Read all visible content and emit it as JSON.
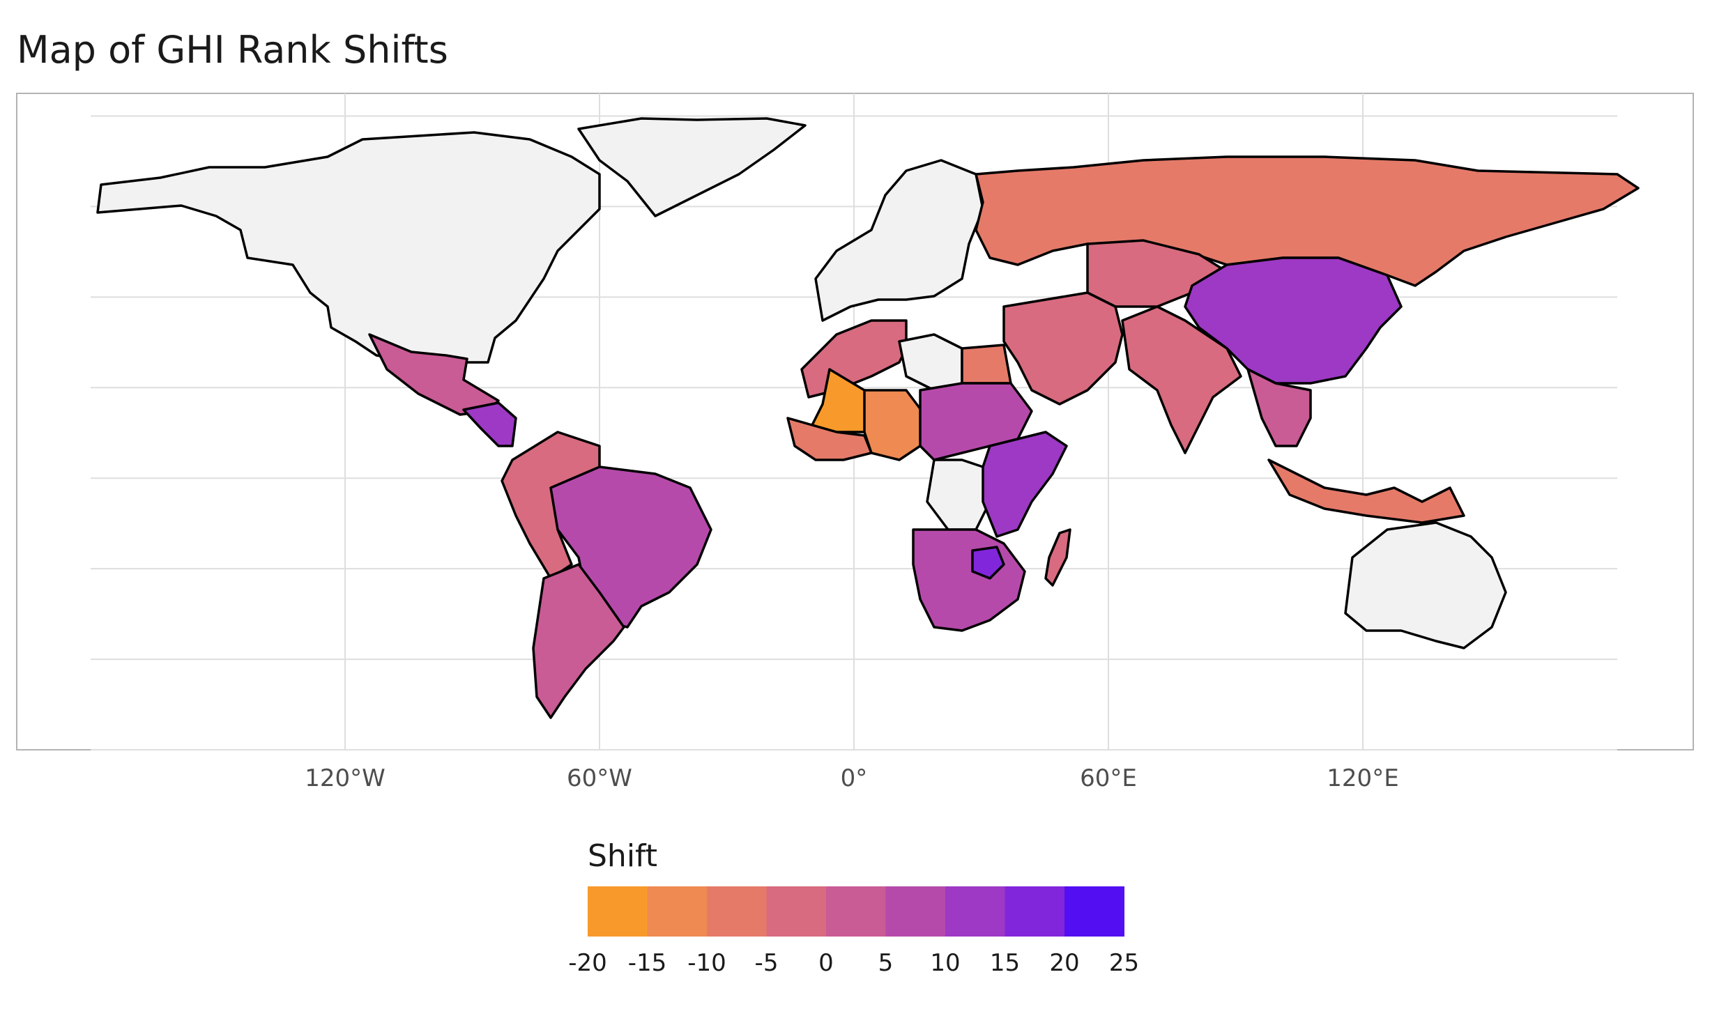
{
  "title": "Map of GHI Rank Shifts",
  "chart_data": {
    "type": "choropleth",
    "title": "Map of GHI Rank Shifts",
    "projection": "equirectangular",
    "x_axis": {
      "ticks": [
        {
          "value": -120,
          "label": "120°W"
        },
        {
          "value": -60,
          "label": "60°W"
        },
        {
          "value": 0,
          "label": "0°"
        },
        {
          "value": 60,
          "label": "60°E"
        },
        {
          "value": 120,
          "label": "120°E"
        }
      ],
      "range": [
        -180,
        190
      ]
    },
    "y_axis": {
      "range": [
        -60,
        85
      ],
      "grid": true
    },
    "legend": {
      "title": "Shift",
      "position": "bottom",
      "breaks": [
        "-20",
        "-15",
        "-10",
        "-5",
        "0",
        "5",
        "10",
        "15",
        "20",
        "25"
      ],
      "colors": [
        "#f89a2b",
        "#ee8a52",
        "#e57a69",
        "#d86b7f",
        "#c95b95",
        "#b64aab",
        "#9d39c5",
        "#8226dc",
        "#530ff2"
      ]
    },
    "no_data_color": "#f2f2f2",
    "regions": [
      {
        "name": "North America (USA/Canada)",
        "shift": null
      },
      {
        "name": "Greenland",
        "shift": null
      },
      {
        "name": "Mexico",
        "shift": 0
      },
      {
        "name": "Central America",
        "shift": 10
      },
      {
        "name": "Brazil",
        "shift": -5
      },
      {
        "name": "Andean South America",
        "shift": 8
      },
      {
        "name": "Argentina",
        "shift": 2
      },
      {
        "name": "Europe",
        "shift": null
      },
      {
        "name": "Russia",
        "shift": -8
      },
      {
        "name": "Central Asia",
        "shift": -3
      },
      {
        "name": "China",
        "shift": 12
      },
      {
        "name": "Middle East",
        "shift": -4
      },
      {
        "name": "India",
        "shift": -5
      },
      {
        "name": "Southeast Asia",
        "shift": 3
      },
      {
        "name": "Indonesia",
        "shift": -8
      },
      {
        "name": "North Africa",
        "shift": -5
      },
      {
        "name": "Egypt",
        "shift": -8
      },
      {
        "name": "Mali",
        "shift": -20
      },
      {
        "name": "Niger / Nigeria",
        "shift": -12
      },
      {
        "name": "West Africa coast",
        "shift": -10
      },
      {
        "name": "Libya",
        "shift": null
      },
      {
        "name": "Central Africa",
        "shift": 5
      },
      {
        "name": "East Africa",
        "shift": 10
      },
      {
        "name": "DR Congo",
        "shift": null
      },
      {
        "name": "Southern Africa",
        "shift": 5
      },
      {
        "name": "Zimbabwe",
        "shift": 18
      },
      {
        "name": "Madagascar",
        "shift": -5
      },
      {
        "name": "Australia",
        "shift": null
      }
    ]
  }
}
